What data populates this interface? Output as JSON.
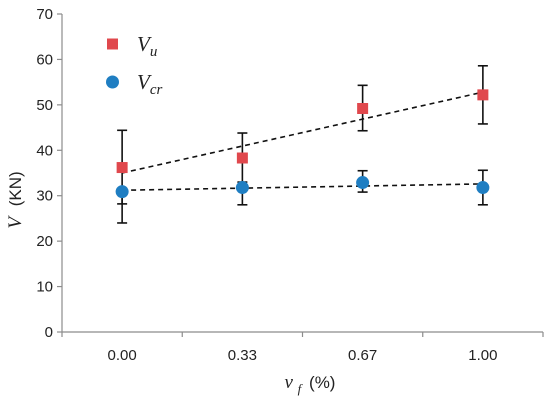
{
  "chart_data": {
    "type": "scatter",
    "title": "",
    "ylabel": "V (KN)",
    "ylabel_symbol": "V",
    "ylabel_unit": "(KN)",
    "xlabel": "v_f (%)",
    "xlabel_symbol": "v",
    "xlabel_subscript": "f",
    "xlabel_unit": "(%)",
    "categories": [
      "0.00",
      "0.33",
      "0.67",
      "1.00"
    ],
    "ylim": [
      0,
      70
    ],
    "yticks": [
      0,
      10,
      20,
      30,
      40,
      50,
      60,
      70
    ],
    "grid": false,
    "legend_position": "top-left",
    "series": [
      {
        "name": "V_u",
        "legend_main": "V",
        "legend_sub": "u",
        "marker": "square",
        "color": "#e0484d",
        "values": [
          36.2,
          38.3,
          49.2,
          52.2
        ],
        "err_low": [
          24.0,
          33.0,
          44.3,
          45.8
        ],
        "err_high": [
          44.4,
          43.8,
          54.3,
          58.6
        ],
        "trend_start": 35.0,
        "trend_end": 52.8
      },
      {
        "name": "V_cr",
        "legend_main": "V",
        "legend_sub": "cr",
        "marker": "circle",
        "color": "#1f7ec2",
        "values": [
          30.9,
          31.8,
          32.9,
          31.8
        ],
        "err_low": [
          28.2,
          28.0,
          30.8,
          28.0
        ],
        "err_high": null,
        "err_high_values": [
          null,
          null,
          35.5,
          35.6
        ],
        "trend_start": 31.2,
        "trend_end": 32.6
      }
    ]
  }
}
